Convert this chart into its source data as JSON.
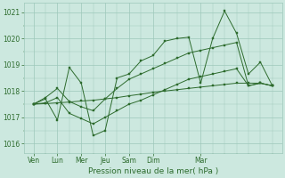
{
  "background_color": "#cce8df",
  "grid_color": "#9ec8ba",
  "line_color": "#2d6b2d",
  "title": "Pression niveau de la mer( hPa )",
  "ylabel_ticks": [
    1016,
    1017,
    1018,
    1019,
    1020,
    1021
  ],
  "xlabels": [
    "Ven",
    "Lun",
    "Mer",
    "Jeu",
    "Sam",
    "Dim",
    "Mar"
  ],
  "ylim": [
    1015.65,
    1021.35
  ],
  "series": [
    [
      1017.5,
      1017.7,
      1016.9,
      1018.9,
      1018.3,
      1016.3,
      1016.5,
      1018.5,
      1018.65,
      1019.15,
      1019.35,
      1019.9,
      1020.0,
      1020.05,
      1018.3,
      1020.0,
      1021.05,
      1020.2,
      1018.65,
      1019.1,
      1018.2
    ],
    [
      1017.5,
      1017.75,
      1018.1,
      1017.6,
      1017.4,
      1017.25,
      1017.7,
      1018.1,
      1018.45,
      1018.65,
      1018.85,
      1019.05,
      1019.25,
      1019.45,
      1019.55,
      1019.65,
      1019.75,
      1019.85,
      1018.2,
      1018.3,
      1018.2
    ],
    [
      1017.5,
      1017.55,
      1017.75,
      1017.15,
      1016.95,
      1016.75,
      1017.0,
      1017.25,
      1017.5,
      1017.65,
      1017.85,
      1018.05,
      1018.25,
      1018.45,
      1018.55,
      1018.65,
      1018.75,
      1018.85,
      1018.2,
      1018.3,
      1018.2
    ],
    [
      1017.5,
      1017.52,
      1017.55,
      1017.58,
      1017.62,
      1017.65,
      1017.7,
      1017.75,
      1017.82,
      1017.88,
      1017.95,
      1018.0,
      1018.05,
      1018.1,
      1018.15,
      1018.2,
      1018.25,
      1018.3,
      1018.3,
      1018.3,
      1018.2
    ]
  ],
  "x_tick_positions": [
    0,
    2,
    4,
    6,
    8,
    10,
    14
  ],
  "n_points": 21,
  "x_max": 20
}
